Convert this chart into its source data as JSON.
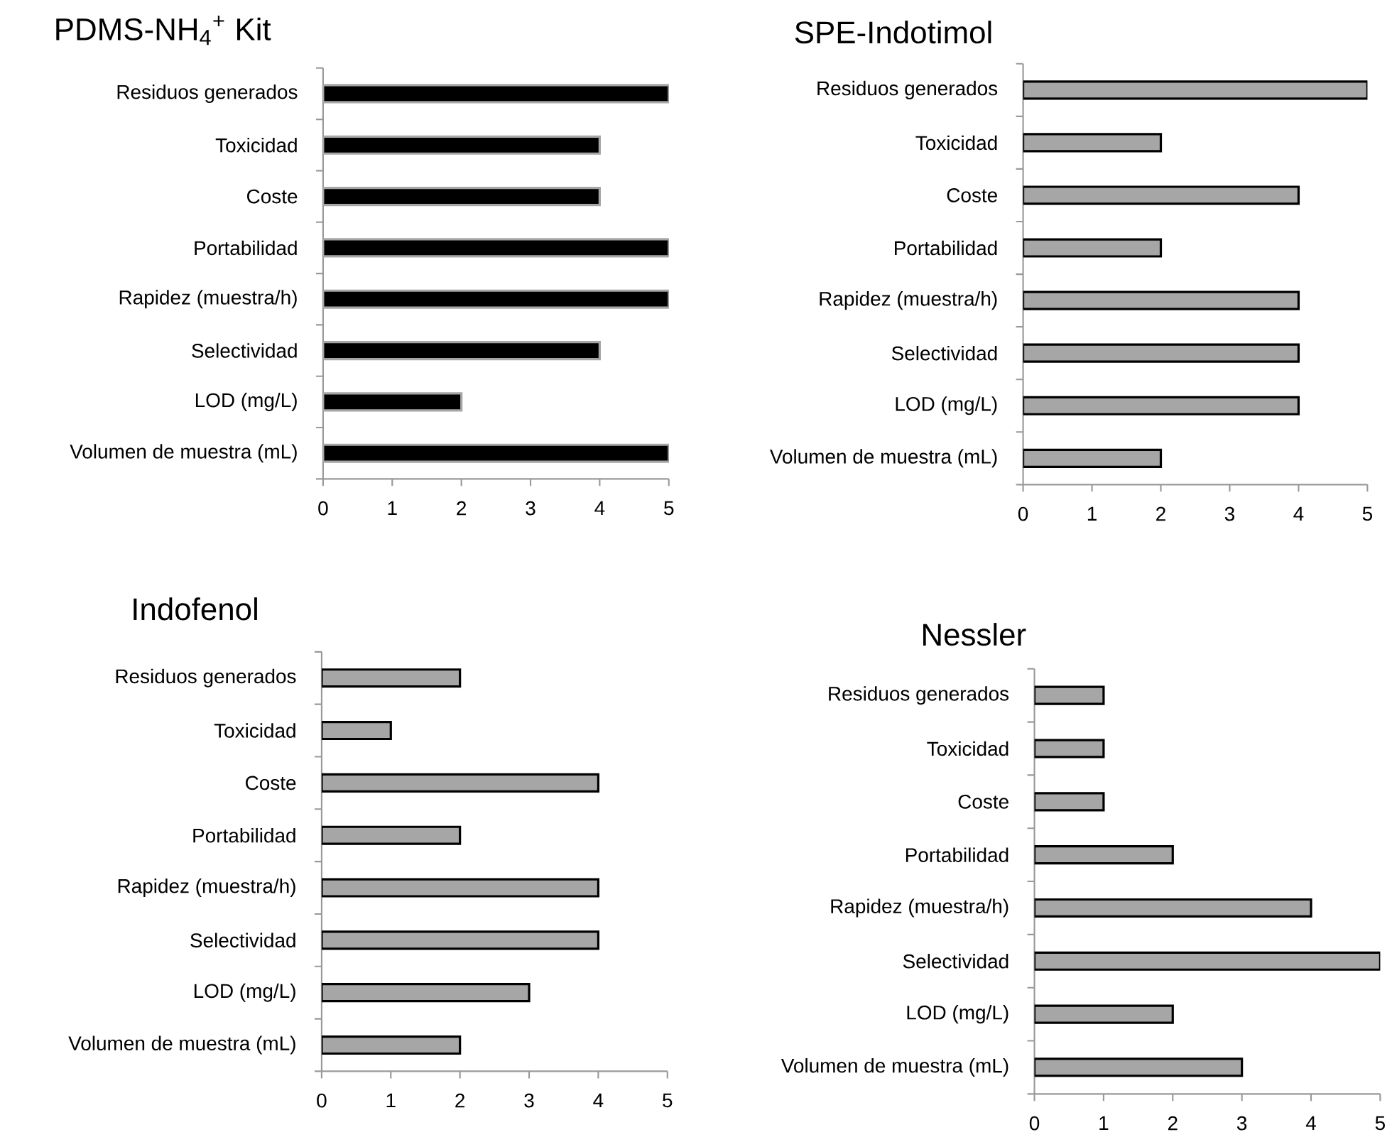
{
  "chart_data": [
    {
      "type": "bar",
      "orientation": "horizontal",
      "title": "PDMS-NH$_{4}$$^{+}$ Kit",
      "categories": [
        "Residuos generados",
        "Toxicidad",
        "Coste",
        "Portabilidad",
        "Rapidez (muestra/h)",
        "Selectividad",
        "LOD (mg/L)",
        "Volumen de muestra (mL)"
      ],
      "values": [
        5,
        4,
        4,
        5,
        5,
        4,
        2,
        5
      ],
      "color": "#000000",
      "xlim": [
        0,
        5
      ],
      "xticks": [
        0,
        1,
        2,
        3,
        4,
        5
      ]
    },
    {
      "type": "bar",
      "orientation": "horizontal",
      "title": "SPE-Indotimol",
      "categories": [
        "Residuos generados",
        "Toxicidad",
        "Coste",
        "Portabilidad",
        "Rapidez (muestra/h)",
        "Selectividad",
        "LOD (mg/L)",
        "Volumen de muestra (mL)"
      ],
      "values": [
        5,
        2,
        4,
        2,
        4,
        4,
        4,
        2
      ],
      "color": "#a6a6a6",
      "xlim": [
        0,
        5
      ],
      "xticks": [
        0,
        1,
        2,
        3,
        4,
        5
      ]
    },
    {
      "type": "bar",
      "orientation": "horizontal",
      "title": "Indofenol",
      "categories": [
        "Residuos generados",
        "Toxicidad",
        "Coste",
        "Portabilidad",
        "Rapidez (muestra/h)",
        "Selectividad",
        "LOD (mg/L)",
        "Volumen de muestra (mL)"
      ],
      "values": [
        2,
        1,
        4,
        2,
        4,
        4,
        3,
        2
      ],
      "color": "#a6a6a6",
      "xlim": [
        0,
        5
      ],
      "xticks": [
        0,
        1,
        2,
        3,
        4,
        5
      ]
    },
    {
      "type": "bar",
      "orientation": "horizontal",
      "title": "Nessler",
      "categories": [
        "Residuos generados",
        "Toxicidad",
        "Coste",
        "Portabilidad",
        "Rapidez (muestra/h)",
        "Selectividad",
        "LOD (mg/L)",
        "Volumen de muestra (mL)"
      ],
      "values": [
        1,
        1,
        1,
        2,
        4,
        5,
        2,
        3
      ],
      "color": "#a6a6a6",
      "xlim": [
        0,
        5
      ],
      "xticks": [
        0,
        1,
        2,
        3,
        4,
        5
      ]
    }
  ]
}
